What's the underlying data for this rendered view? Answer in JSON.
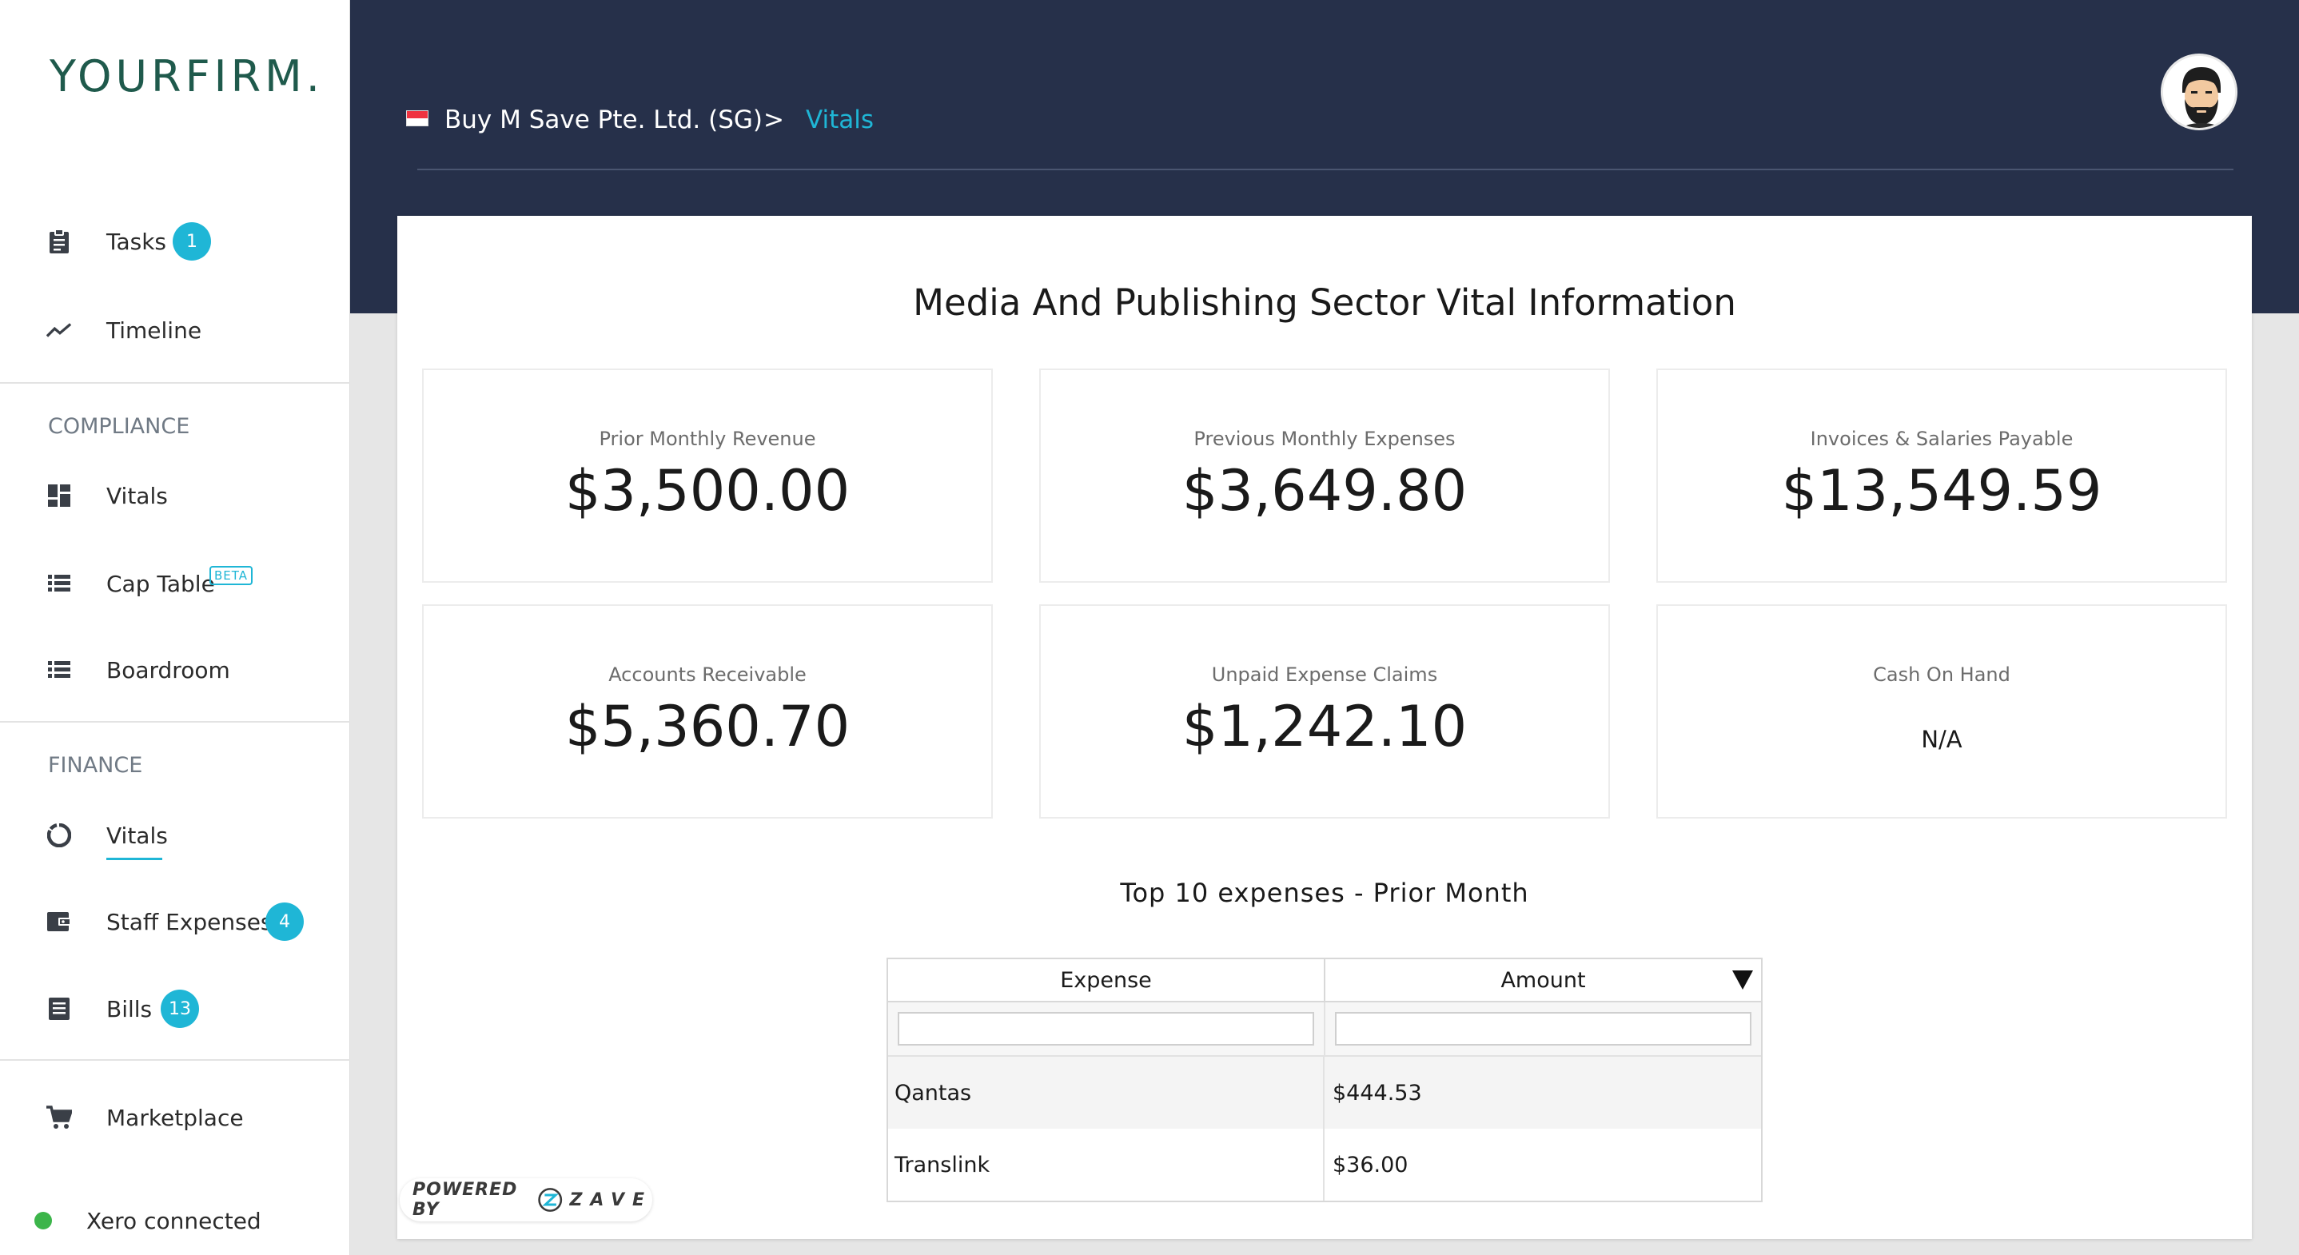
{
  "app": {
    "logo_main": "YOURFIRM",
    "logo_dot": "."
  },
  "sidebar": {
    "items_top": [
      {
        "label": "Tasks",
        "badge": "1",
        "icon": "clipboard-icon"
      },
      {
        "label": "Timeline",
        "icon": "trend-line-icon"
      }
    ],
    "compliance": {
      "heading": "COMPLIANCE",
      "items": [
        {
          "label": "Vitals",
          "icon": "dashboard-icon"
        },
        {
          "label": "Cap Table",
          "tag": "BETA",
          "icon": "list-icon"
        },
        {
          "label": "Boardroom",
          "icon": "list-icon"
        }
      ]
    },
    "finance": {
      "heading": "FINANCE",
      "items": [
        {
          "label": "Vitals",
          "icon": "donut-chart-icon",
          "active": true
        },
        {
          "label": "Staff Expenses",
          "badge": "4",
          "icon": "wallet-icon"
        },
        {
          "label": "Bills",
          "badge": "13",
          "icon": "receipt-icon"
        }
      ]
    },
    "marketplace": {
      "label": "Marketplace",
      "icon": "cart-icon"
    },
    "status": {
      "label": "Xero connected",
      "color": "#3cb54a"
    }
  },
  "header": {
    "breadcrumb": {
      "company": "Buy M Save Pte. Ltd. (SG)",
      "separator": ">",
      "current": "Vitals"
    },
    "flag_icon": "singapore-flag-icon"
  },
  "main": {
    "title": "Media And Publishing Sector Vital Information",
    "metrics": [
      {
        "label": "Prior Monthly Revenue",
        "value": "$3,500.00"
      },
      {
        "label": "Previous Monthly Expenses",
        "value": "$3,649.80"
      },
      {
        "label": "Invoices & Salaries Payable",
        "value": "$13,549.59"
      },
      {
        "label": "Accounts Receivable",
        "value": "$5,360.70"
      },
      {
        "label": "Unpaid Expense Claims",
        "value": "$1,242.10"
      },
      {
        "label": "Cash On Hand",
        "value": "N/A"
      }
    ],
    "table": {
      "title": "Top 10 expenses - Prior Month",
      "columns": [
        "Expense",
        "Amount"
      ],
      "filter_values": [
        "",
        ""
      ],
      "rows": [
        {
          "expense": "Qantas",
          "amount": "$444.53"
        },
        {
          "expense": "Translink",
          "amount": "$36.00"
        }
      ]
    }
  },
  "footer": {
    "powered_by": "POWERED BY",
    "brand": "ZAVE"
  },
  "colors": {
    "accent": "#1fb6d6",
    "header_bg": "#26304a",
    "logo": "#1f5a4c",
    "status_ok": "#3cb54a"
  }
}
